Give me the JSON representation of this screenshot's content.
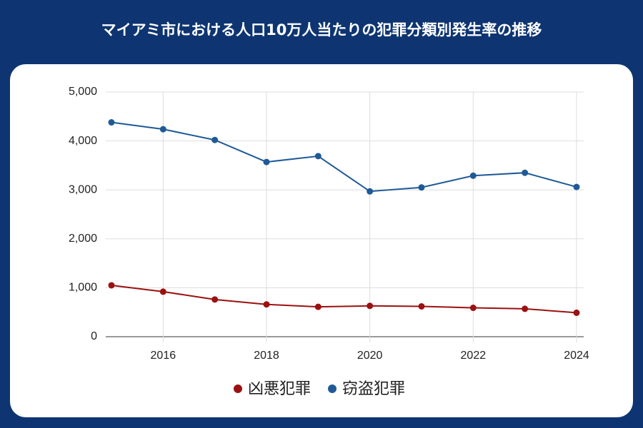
{
  "chart_data": {
    "type": "line",
    "title": "マイアミ市における人口10万人当たりの犯罪分類別発生率の推移",
    "x": [
      2015,
      2016,
      2017,
      2018,
      2019,
      2020,
      2021,
      2022,
      2023,
      2024
    ],
    "series": [
      {
        "name": "凶悪犯罪",
        "color": "#9b1111",
        "values": [
          1050,
          920,
          760,
          660,
          610,
          630,
          620,
          590,
          570,
          490
        ]
      },
      {
        "name": "窃盗犯罪",
        "color": "#1f5a96",
        "values": [
          4380,
          4240,
          4020,
          3570,
          3690,
          2970,
          3050,
          3290,
          3350,
          3060
        ]
      }
    ],
    "xlim": [
      2015,
      2024
    ],
    "xticks": [
      2016,
      2018,
      2020,
      2022,
      2024
    ],
    "ylim": [
      0,
      5000
    ],
    "yticks": [
      0,
      {
        "value": 1000,
        "label": "1,000"
      },
      {
        "value": 2000,
        "label": "2,000"
      },
      {
        "value": 3000,
        "label": "3,000"
      },
      {
        "value": 4000,
        "label": "4,000"
      },
      {
        "value": 5000,
        "label": "5,000"
      }
    ],
    "grid": true,
    "legend": "bottom"
  }
}
